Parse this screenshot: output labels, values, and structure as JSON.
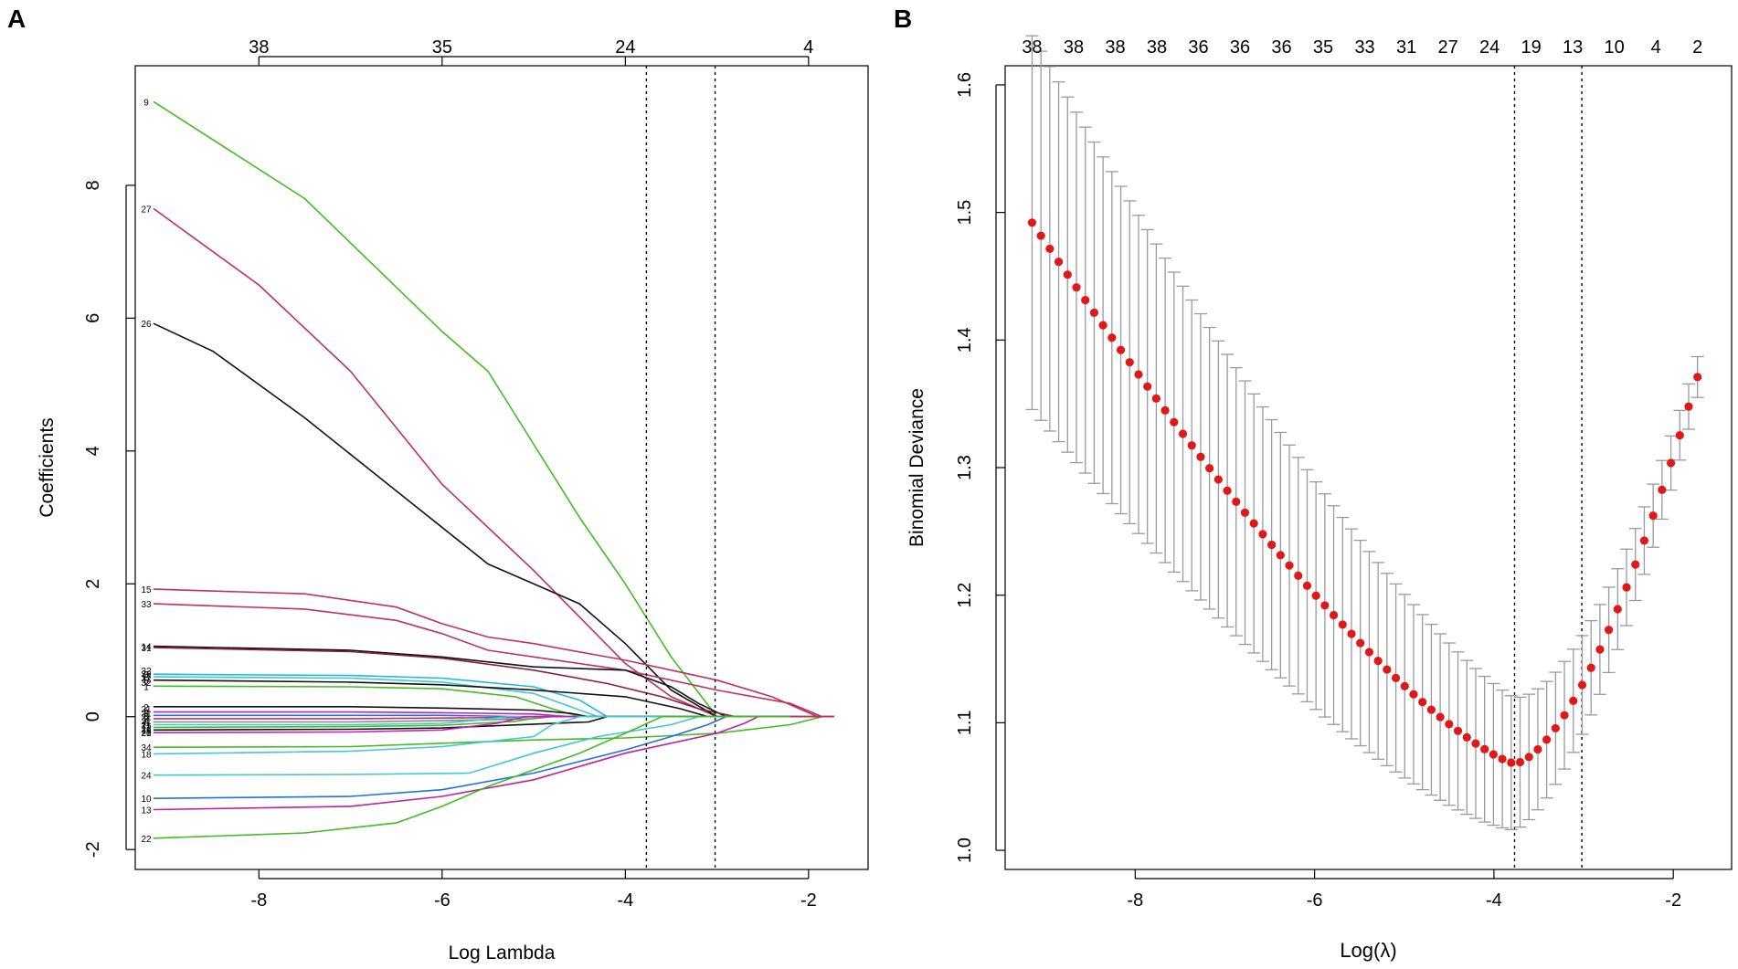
{
  "chart_data": [
    {
      "type": "line",
      "panel_label": "A",
      "xlabel": "Log Lambda",
      "ylabel": "Coefficients",
      "xlim": [
        -9.35,
        -1.35
      ],
      "ylim": [
        -2.3,
        9.8
      ],
      "x_ticks": [
        -8,
        -6,
        -4,
        -2
      ],
      "y_ticks": [
        -2,
        0,
        2,
        4,
        6,
        8
      ],
      "top_axis": {
        "positions": [
          -8,
          -6,
          -4,
          -2
        ],
        "labels": [
          "38",
          "35",
          "24",
          "4"
        ]
      },
      "vlines": [
        -3.77,
        -3.02
      ],
      "series": [
        {
          "name": "9",
          "label": "9",
          "color": "#44bb22",
          "x": [
            -9.15,
            -7.5,
            -6.0,
            -5.5,
            -5.0,
            -4.5,
            -4.0,
            -3.5,
            -3.0
          ],
          "y": [
            9.26,
            7.8,
            5.8,
            5.2,
            4.1,
            3.0,
            2.0,
            0.9,
            0.0
          ]
        },
        {
          "name": "27",
          "label": "27",
          "color": "#c0305a",
          "x": [
            -9.15,
            -8.0,
            -7.0,
            -6.0,
            -5.0,
            -4.5,
            -4.0,
            -3.5,
            -3.0
          ],
          "y": [
            7.65,
            6.5,
            5.2,
            3.5,
            2.2,
            1.5,
            0.8,
            0.3,
            0.0
          ]
        },
        {
          "name": "26",
          "label": "26",
          "color": "#111111",
          "x": [
            -9.15,
            -8.5,
            -7.5,
            -6.5,
            -5.5,
            -4.5,
            -4.0,
            -3.5,
            -3.0
          ],
          "y": [
            5.92,
            5.5,
            4.5,
            3.4,
            2.3,
            1.7,
            1.1,
            0.4,
            0.0
          ]
        },
        {
          "name": "15",
          "label": "15",
          "color": "#c03060",
          "x": [
            -9.15,
            -7.5,
            -6.5,
            -6.0,
            -5.5,
            -5.0,
            -4.0,
            -3.0,
            -2.4,
            -1.9
          ],
          "y": [
            1.92,
            1.85,
            1.65,
            1.4,
            1.2,
            1.1,
            0.85,
            0.55,
            0.3,
            0.0
          ]
        },
        {
          "name": "33",
          "label": "33",
          "color": "#c03060",
          "x": [
            -9.15,
            -7.5,
            -6.5,
            -6.0,
            -5.5,
            -5.0,
            -4.0,
            -3.0,
            -2.2,
            -1.85
          ],
          "y": [
            1.7,
            1.62,
            1.45,
            1.25,
            1.0,
            0.9,
            0.7,
            0.4,
            0.2,
            0.0
          ]
        },
        {
          "name": "14",
          "label": "14",
          "color": "#111111",
          "x": [
            -9.15,
            -7.0,
            -6.0,
            -5.0,
            -4.0,
            -3.5,
            -3.2,
            -2.9
          ],
          "y": [
            1.06,
            1.0,
            0.9,
            0.75,
            0.7,
            0.45,
            0.2,
            0.0
          ]
        },
        {
          "name": "31",
          "label": "31",
          "color": "#8a2040",
          "x": [
            -9.15,
            -7.0,
            -6.0,
            -5.0,
            -4.2,
            -3.6,
            -3.2,
            -2.8
          ],
          "y": [
            1.04,
            0.98,
            0.88,
            0.7,
            0.5,
            0.3,
            0.12,
            0.0
          ]
        },
        {
          "name": "3",
          "label": "3",
          "color": "#20b8e0",
          "x": [
            -9.15,
            -7.0,
            -6.0,
            -5.0,
            -4.5,
            -4.2
          ],
          "y": [
            0.64,
            0.62,
            0.58,
            0.45,
            0.25,
            0.0
          ]
        },
        {
          "name": "17",
          "label": "17",
          "color": "#40c8d0",
          "x": [
            -9.15,
            -7.0,
            -6.0,
            -5.0,
            -4.6,
            -4.3
          ],
          "y": [
            0.6,
            0.58,
            0.52,
            0.35,
            0.15,
            0.0
          ]
        },
        {
          "name": "5",
          "label": "5",
          "color": "#111111",
          "x": [
            -9.15,
            -7.0,
            -6.0,
            -5.0,
            -4.0,
            -3.4,
            -3.1
          ],
          "y": [
            0.55,
            0.52,
            0.48,
            0.4,
            0.3,
            0.12,
            0.0
          ]
        },
        {
          "name": "1",
          "label": "1",
          "color": "#44bb22",
          "x": [
            -9.15,
            -7.0,
            -6.0,
            -5.2,
            -4.8,
            -4.5
          ],
          "y": [
            0.46,
            0.45,
            0.42,
            0.3,
            0.12,
            0.0
          ]
        },
        {
          "name": "2",
          "label": "2",
          "color": "#111111",
          "x": [
            -9.15,
            -7.0,
            -6.0,
            -5.0,
            -4.6,
            -4.4
          ],
          "y": [
            0.15,
            0.15,
            0.13,
            0.1,
            0.05,
            0.0
          ]
        },
        {
          "name": "4",
          "label": "4",
          "color": "#c020c0",
          "x": [
            -9.15,
            -7.0,
            -6.0,
            -5.0,
            -4.6
          ],
          "y": [
            0.07,
            0.07,
            0.06,
            0.04,
            0.0
          ]
        },
        {
          "name": "6",
          "label": "6",
          "color": "#2070e0",
          "x": [
            -9.15,
            -7.0,
            -6.0,
            -5.5,
            -5.2
          ],
          "y": [
            0.02,
            0.02,
            0.02,
            0.01,
            0.0
          ]
        },
        {
          "name": "7",
          "label": "7",
          "color": "#c03060",
          "x": [
            -9.15,
            -7.0,
            -6.0,
            -5.2,
            -5.0
          ],
          "y": [
            -0.03,
            -0.03,
            -0.02,
            -0.01,
            0.0
          ]
        },
        {
          "name": "8",
          "label": "8",
          "color": "#888888",
          "x": [
            -9.15,
            -7.0,
            -6.0,
            -5.0,
            -4.8
          ],
          "y": [
            -0.08,
            -0.08,
            -0.06,
            -0.03,
            0.0
          ]
        },
        {
          "name": "11",
          "label": "11",
          "color": "#40c8d0",
          "x": [
            -9.15,
            -7.0,
            -6.0,
            -5.6,
            -5.3
          ],
          "y": [
            -0.12,
            -0.12,
            -0.1,
            -0.05,
            0.0
          ]
        },
        {
          "name": "12",
          "label": "12",
          "color": "#44bb22",
          "x": [
            -9.15,
            -7.0,
            -6.0,
            -5.2,
            -4.9
          ],
          "y": [
            -0.16,
            -0.15,
            -0.13,
            -0.07,
            0.0
          ]
        },
        {
          "name": "19",
          "label": "19",
          "color": "#111111",
          "x": [
            -9.15,
            -7.0,
            -6.0,
            -4.4,
            -4.2
          ],
          "y": [
            -0.2,
            -0.19,
            -0.17,
            -0.08,
            0.0
          ]
        },
        {
          "name": "20",
          "label": "20",
          "color": "#c020c0",
          "x": [
            -9.15,
            -7.0,
            -6.0,
            -5.4,
            -5.1
          ],
          "y": [
            -0.24,
            -0.23,
            -0.2,
            -0.1,
            0.0
          ]
        },
        {
          "name": "34",
          "label": "34",
          "color": "#44bb22",
          "x": [
            -9.15,
            -7.0,
            -6.0,
            -5.0,
            -4.0,
            -3.0,
            -2.2,
            -1.85
          ],
          "y": [
            -0.46,
            -0.45,
            -0.4,
            -0.35,
            -0.32,
            -0.25,
            -0.12,
            0.0
          ]
        },
        {
          "name": "18",
          "label": "18",
          "color": "#40c8d0",
          "x": [
            -9.15,
            -7.0,
            -6.0,
            -5.0,
            -4.8,
            -4.5
          ],
          "y": [
            -0.56,
            -0.52,
            -0.45,
            -0.3,
            -0.12,
            0.0
          ]
        },
        {
          "name": "24",
          "label": "24",
          "color": "#40c8d0",
          "x": [
            -9.15,
            -7.0,
            -5.7,
            -5.0,
            -4.3,
            -3.5,
            -3.2
          ],
          "y": [
            -0.88,
            -0.87,
            -0.85,
            -0.55,
            -0.3,
            -0.12,
            0.0
          ]
        },
        {
          "name": "10",
          "label": "10",
          "color": "#2070e0",
          "x": [
            -9.15,
            -7.0,
            -6.0,
            -5.0,
            -4.0,
            -3.5,
            -3.1,
            -2.9
          ],
          "y": [
            -1.23,
            -1.2,
            -1.1,
            -0.85,
            -0.5,
            -0.3,
            -0.12,
            0.0
          ]
        },
        {
          "name": "13",
          "label": "13",
          "color": "#c020a0",
          "x": [
            -9.15,
            -7.0,
            -6.0,
            -5.0,
            -4.0,
            -3.0,
            -2.7,
            -2.55
          ],
          "y": [
            -1.4,
            -1.35,
            -1.2,
            -0.95,
            -0.55,
            -0.25,
            -0.1,
            0.0
          ]
        },
        {
          "name": "22",
          "label": "22",
          "color": "#44bb22",
          "x": [
            -9.15,
            -7.5,
            -6.5,
            -6.0,
            -5.5,
            -5.0,
            -4.5,
            -4.0,
            -3.6
          ],
          "y": [
            -1.83,
            -1.75,
            -1.6,
            -1.35,
            -1.05,
            -0.8,
            -0.55,
            -0.25,
            0.0
          ]
        }
      ],
      "cluster_labels": {
        "text": "21",
        "y": [
          0.12,
          0.06,
          0.0,
          -0.06,
          -0.12,
          -0.18,
          -0.24
        ]
      },
      "cluster_labels_upper": {
        "text": "32",
        "y": [
          0.7,
          0.65,
          0.58,
          0.52
        ]
      }
    },
    {
      "type": "scatter",
      "panel_label": "B",
      "xlabel": "Log(λ)",
      "ylabel": "Binomial Deviance",
      "xlim": [
        -9.45,
        -1.35
      ],
      "ylim": [
        0.985,
        1.615
      ],
      "x_ticks": [
        -8,
        -6,
        -4,
        -2
      ],
      "y_ticks": [
        1.0,
        1.1,
        1.2,
        1.3,
        1.4,
        1.5,
        1.6
      ],
      "top_axis": {
        "labels": [
          "38",
          "38",
          "38",
          "38",
          "36",
          "36",
          "36",
          "35",
          "33",
          "31",
          "27",
          "24",
          "19",
          "13",
          "10",
          "4",
          "2"
        ]
      },
      "vlines": [
        -3.77,
        -3.02
      ],
      "x_range": [
        -9.15,
        -1.73
      ],
      "n_points": 76,
      "min_deviance": 1.068,
      "max_deviance": 1.492,
      "end_deviance": 1.371,
      "min_point": {
        "x": -3.77,
        "y": 1.068
      },
      "error_bars": {
        "start_lower": 1.345,
        "start_upper": 1.638,
        "min_halfwidth": 0.052,
        "end_halfwidth": 0.016
      }
    }
  ]
}
